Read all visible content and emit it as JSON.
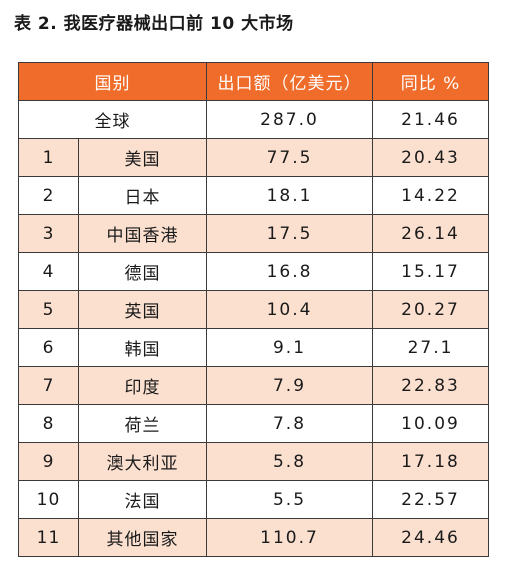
{
  "caption": "表 2. 我医疗器械出口前 10 大市场",
  "table": {
    "headers": {
      "country": "国别",
      "export": "出口额（亿美元）",
      "yoy": "同比 %"
    },
    "total": {
      "label": "全球",
      "export": "287.0",
      "yoy": "21.46"
    },
    "rows": [
      {
        "rank": "1",
        "country": "美国",
        "export": "77.5",
        "yoy": "20.43"
      },
      {
        "rank": "2",
        "country": "日本",
        "export": "18.1",
        "yoy": "14.22"
      },
      {
        "rank": "3",
        "country": "中国香港",
        "export": "17.5",
        "yoy": "26.14"
      },
      {
        "rank": "4",
        "country": "德国",
        "export": "16.8",
        "yoy": "15.17"
      },
      {
        "rank": "5",
        "country": "英国",
        "export": "10.4",
        "yoy": "20.27"
      },
      {
        "rank": "6",
        "country": "韩国",
        "export": "9.1",
        "yoy": "27.1"
      },
      {
        "rank": "7",
        "country": "印度",
        "export": "7.9",
        "yoy": "22.83"
      },
      {
        "rank": "8",
        "country": "荷兰",
        "export": "7.8",
        "yoy": "10.09"
      },
      {
        "rank": "9",
        "country": "澳大利亚",
        "export": "5.8",
        "yoy": "17.18"
      },
      {
        "rank": "10",
        "country": "法国",
        "export": "5.5",
        "yoy": "22.57"
      },
      {
        "rank": "11",
        "country": "其他国家",
        "export": "110.7",
        "yoy": "24.46"
      }
    ]
  },
  "colors": {
    "header_bg": "#ef6c2a",
    "header_text": "#ffffff",
    "stripe_bg": "#fbe0d0",
    "border": "#3a3a3a"
  }
}
